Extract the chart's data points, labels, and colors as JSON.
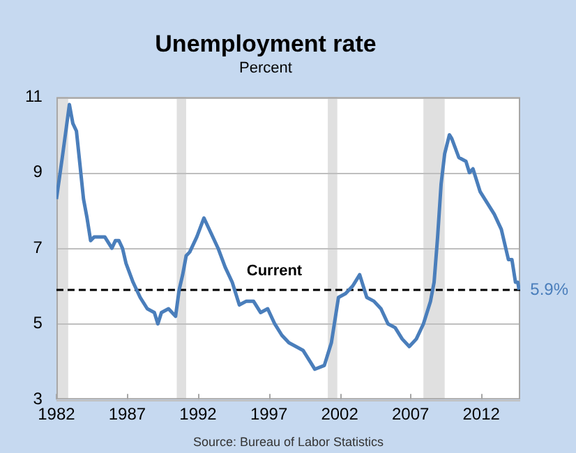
{
  "chart_data": {
    "type": "line",
    "title": "Unemployment rate",
    "subtitle": "Percent",
    "x": [
      "1982-01",
      "1982-06",
      "1982-09",
      "1982-12",
      "1983-03",
      "1983-06",
      "1983-09",
      "1983-12",
      "1984-03",
      "1984-06",
      "1984-09",
      "1984-12",
      "1985-06",
      "1985-12",
      "1986-03",
      "1986-06",
      "1986-09",
      "1986-12",
      "1987-06",
      "1987-12",
      "1988-06",
      "1988-12",
      "1989-03",
      "1989-06",
      "1989-12",
      "1990-06",
      "1990-09",
      "1990-12",
      "1991-03",
      "1991-06",
      "1991-12",
      "1992-06",
      "1992-12",
      "1993-06",
      "1993-12",
      "1994-06",
      "1994-12",
      "1995-06",
      "1995-12",
      "1996-06",
      "1996-12",
      "1997-06",
      "1997-12",
      "1998-06",
      "1998-12",
      "1999-06",
      "1999-12",
      "2000-04",
      "2000-12",
      "2001-06",
      "2001-12",
      "2002-06",
      "2002-12",
      "2003-06",
      "2003-12",
      "2004-06",
      "2004-12",
      "2005-06",
      "2005-12",
      "2006-06",
      "2006-12",
      "2007-06",
      "2007-12",
      "2008-06",
      "2008-09",
      "2008-12",
      "2009-03",
      "2009-06",
      "2009-10",
      "2009-12",
      "2010-06",
      "2010-12",
      "2011-03",
      "2011-06",
      "2011-12",
      "2012-06",
      "2012-12",
      "2013-06",
      "2013-12",
      "2014-03",
      "2014-06",
      "2014-08",
      "2014-09"
    ],
    "series": [
      {
        "color": "#4a7ebb",
        "values": [
          8.3,
          9.4,
          10.1,
          10.8,
          10.3,
          10.1,
          9.2,
          8.3,
          7.8,
          7.2,
          7.3,
          7.3,
          7.3,
          7.0,
          7.2,
          7.2,
          7.0,
          6.6,
          6.1,
          5.7,
          5.4,
          5.3,
          5.0,
          5.3,
          5.4,
          5.2,
          5.9,
          6.3,
          6.8,
          6.9,
          7.3,
          7.8,
          7.4,
          7.0,
          6.5,
          6.1,
          5.5,
          5.6,
          5.6,
          5.3,
          5.4,
          5.0,
          4.7,
          4.5,
          4.4,
          4.3,
          4.0,
          3.8,
          3.9,
          4.5,
          5.7,
          5.8,
          6.0,
          6.3,
          5.7,
          5.6,
          5.4,
          5.0,
          4.9,
          4.6,
          4.4,
          4.6,
          5.0,
          5.6,
          6.1,
          7.3,
          8.7,
          9.5,
          10.0,
          9.9,
          9.4,
          9.3,
          9.0,
          9.1,
          8.5,
          8.2,
          7.9,
          7.5,
          6.7,
          6.7,
          6.1,
          6.1,
          5.9
        ]
      }
    ],
    "xlim": [
      "1982-01",
      "2014-10"
    ],
    "xticks": [
      {
        "value": "1982",
        "label": "1982"
      },
      {
        "value": "1987",
        "label": "1987"
      },
      {
        "value": "1992",
        "label": "1992"
      },
      {
        "value": "1997",
        "label": "1997"
      },
      {
        "value": "2002",
        "label": "2002"
      },
      {
        "value": "2007",
        "label": "2007"
      },
      {
        "value": "2012",
        "label": "2012"
      }
    ],
    "ylim": [
      3,
      11
    ],
    "yticks": [
      3,
      5,
      7,
      9,
      11
    ],
    "grid": "y",
    "legend": false,
    "marker": "none",
    "line_style": "solid",
    "bands": [
      {
        "axis": "x",
        "from": "1982-01",
        "to": "1982-11",
        "color": "#e0e0e0"
      },
      {
        "axis": "x",
        "from": "1990-07",
        "to": "1991-03",
        "color": "#e0e0e0"
      },
      {
        "axis": "x",
        "from": "2001-03",
        "to": "2001-11",
        "color": "#e0e0e0"
      },
      {
        "axis": "x",
        "from": "2007-12",
        "to": "2009-06",
        "color": "#e0e0e0"
      }
    ],
    "ref_lines": [
      {
        "axis": "y",
        "value": 5.9,
        "label": "Current",
        "color": "#000000",
        "line_style": "dashed"
      }
    ],
    "annotations": [
      {
        "text": "5.9%",
        "x": "2014-09",
        "y": 5.9
      },
      "Source: Bureau of Labor Statistics"
    ]
  }
}
